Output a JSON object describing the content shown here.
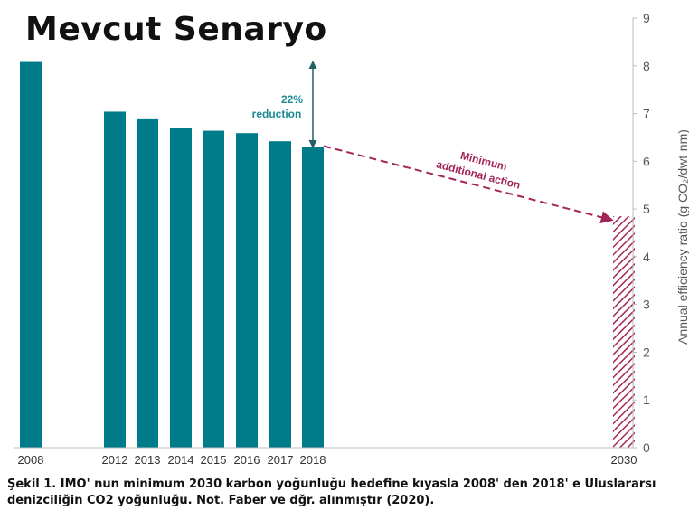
{
  "page_title": "Mevcut Senaryo",
  "caption": "Şekil 1. IMO' nun minimum 2030 karbon yoğunluğu hedefine kıyasla 2008' den 2018' e Uluslararsı denizciliğin CO2 yoğunluğu. Not. Faber ve dğr. alınmıştır (2020).",
  "chart_data": {
    "type": "bar",
    "categories": [
      "2008",
      "2012",
      "2013",
      "2014",
      "2015",
      "2016",
      "2017",
      "2018",
      "2030"
    ],
    "values": [
      8.08,
      7.04,
      6.88,
      6.7,
      6.64,
      6.59,
      6.42,
      6.3,
      4.85
    ],
    "ylabel": "Annual efficiency ratio (g CO₂/dwt-nm)",
    "ylim": [
      0,
      9
    ],
    "yticks": [
      0,
      1,
      2,
      3,
      4,
      5,
      6,
      7,
      8,
      9
    ],
    "y_axis_position": "right",
    "grid": false,
    "bar_color": "#007b8a",
    "target_color": "#a3265a",
    "target_bar_style": "hatched",
    "annotations": {
      "reduction_line1": "22%",
      "reduction_line2": "reduction",
      "additional_line1": "Minimum",
      "additional_line2": "additional action"
    }
  }
}
